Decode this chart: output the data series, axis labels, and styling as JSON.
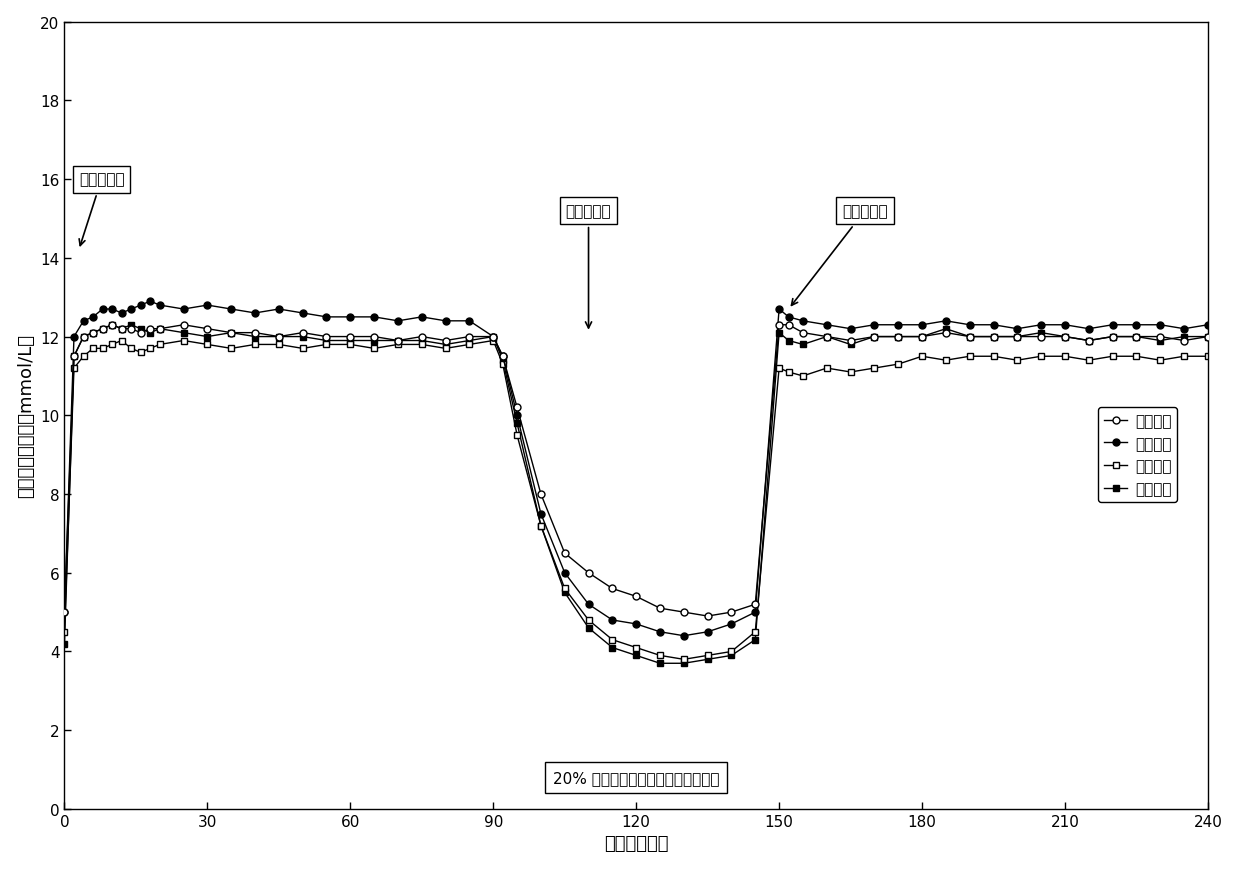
{
  "title": "",
  "xlabel": "时间（分钟）",
  "ylabel": "血浆葡萄糖浓度（mmol/L）",
  "xlim": [
    0,
    240
  ],
  "ylim": [
    0,
    20
  ],
  "xticks": [
    0,
    30,
    60,
    90,
    120,
    150,
    180,
    210,
    240
  ],
  "yticks": [
    0,
    2,
    4,
    6,
    8,
    10,
    12,
    14,
    16,
    18,
    20
  ],
  "annotation1_text": "静脉糖刺激",
  "annotation2_text": "口服糖刺激",
  "annotation3_text": "静脉糖刺激",
  "bottom_text": "20% 葡萄糖水静脉输注（滴速可调）",
  "legend_labels": [
    "空白对照",
    "西格列汀",
    "沙格列汀",
    "格列美脺"
  ],
  "line_color": "#000000",
  "background_color": "#ffffff",
  "t_all": [
    0,
    2,
    4,
    6,
    8,
    10,
    12,
    14,
    16,
    18,
    20,
    25,
    30,
    35,
    40,
    45,
    50,
    55,
    60,
    65,
    70,
    75,
    80,
    85,
    90,
    92,
    95,
    100,
    105,
    110,
    115,
    120,
    125,
    130,
    135,
    140,
    145,
    150,
    152,
    155,
    160,
    165,
    170,
    175,
    180,
    185,
    190,
    195,
    200,
    205,
    210,
    215,
    220,
    225,
    230,
    235,
    240
  ],
  "y_open": [
    5.0,
    11.5,
    12.0,
    12.1,
    12.2,
    12.3,
    12.2,
    12.2,
    12.1,
    12.2,
    12.2,
    12.3,
    12.2,
    12.1,
    12.1,
    12.0,
    12.1,
    12.0,
    12.0,
    12.0,
    11.9,
    12.0,
    11.9,
    12.0,
    12.0,
    11.5,
    10.2,
    8.0,
    6.5,
    6.0,
    5.6,
    5.4,
    5.1,
    5.0,
    4.9,
    5.0,
    5.2,
    12.3,
    12.3,
    12.1,
    12.0,
    11.9,
    12.0,
    12.0,
    12.0,
    12.1,
    12.0,
    12.0,
    12.0,
    12.0,
    12.0,
    11.9,
    12.0,
    12.0,
    12.0,
    11.9,
    12.0
  ],
  "y_filled": [
    5.0,
    12.0,
    12.4,
    12.5,
    12.7,
    12.7,
    12.6,
    12.7,
    12.8,
    12.9,
    12.8,
    12.7,
    12.8,
    12.7,
    12.6,
    12.7,
    12.6,
    12.5,
    12.5,
    12.5,
    12.4,
    12.5,
    12.4,
    12.4,
    12.0,
    11.5,
    10.0,
    7.5,
    6.0,
    5.2,
    4.8,
    4.7,
    4.5,
    4.4,
    4.5,
    4.7,
    5.0,
    12.7,
    12.5,
    12.4,
    12.3,
    12.2,
    12.3,
    12.3,
    12.3,
    12.4,
    12.3,
    12.3,
    12.2,
    12.3,
    12.3,
    12.2,
    12.3,
    12.3,
    12.3,
    12.2,
    12.3
  ],
  "y_opensq": [
    4.5,
    11.2,
    11.5,
    11.7,
    11.7,
    11.8,
    11.9,
    11.7,
    11.6,
    11.7,
    11.8,
    11.9,
    11.8,
    11.7,
    11.8,
    11.8,
    11.7,
    11.8,
    11.8,
    11.7,
    11.8,
    11.8,
    11.7,
    11.8,
    11.9,
    11.3,
    9.5,
    7.2,
    5.6,
    4.8,
    4.3,
    4.1,
    3.9,
    3.8,
    3.9,
    4.0,
    4.5,
    11.2,
    11.1,
    11.0,
    11.2,
    11.1,
    11.2,
    11.3,
    11.5,
    11.4,
    11.5,
    11.5,
    11.4,
    11.5,
    11.5,
    11.4,
    11.5,
    11.5,
    11.4,
    11.5,
    11.5
  ],
  "y_filledsq": [
    4.2,
    11.5,
    12.0,
    12.1,
    12.2,
    12.3,
    12.2,
    12.3,
    12.2,
    12.1,
    12.2,
    12.1,
    12.0,
    12.1,
    12.0,
    12.0,
    12.0,
    11.9,
    11.9,
    11.9,
    11.9,
    11.9,
    11.8,
    11.9,
    12.0,
    11.4,
    9.8,
    7.2,
    5.5,
    4.6,
    4.1,
    3.9,
    3.7,
    3.7,
    3.8,
    3.9,
    4.3,
    12.1,
    11.9,
    11.8,
    12.0,
    11.8,
    12.0,
    12.0,
    12.0,
    12.2,
    12.0,
    12.0,
    12.0,
    12.1,
    12.0,
    11.9,
    12.0,
    12.0,
    11.9,
    12.0,
    12.0
  ]
}
